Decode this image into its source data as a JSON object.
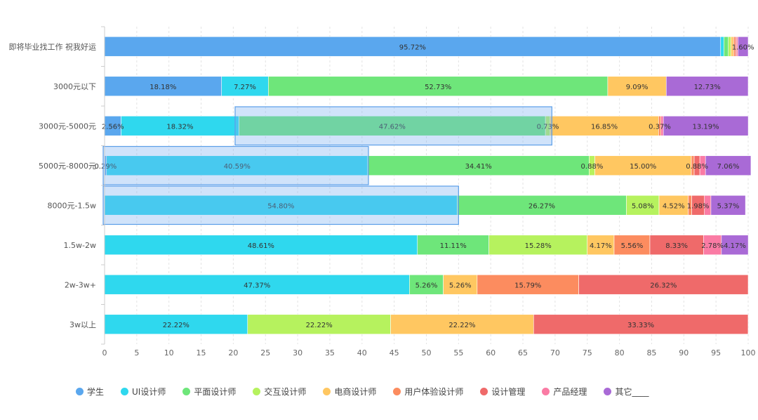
{
  "chart_data": {
    "type": "bar",
    "orientation": "horizontal",
    "stacked": true,
    "xlim": [
      0,
      100
    ],
    "xticks": [
      0,
      5,
      10,
      15,
      20,
      25,
      30,
      35,
      40,
      45,
      50,
      55,
      60,
      65,
      70,
      75,
      80,
      85,
      90,
      95,
      100
    ],
    "grid": "vertical dashed",
    "legend_position": "bottom",
    "categories": [
      "即将毕业找工作 祝我好运",
      "3000元以下",
      "3000元-5000元",
      "5000元-8000元",
      "8000元-1.5w",
      "1.5w-2w",
      "2w-3w+",
      "3w以上"
    ],
    "series": [
      {
        "name": "学生",
        "color": "#5aa7ee",
        "values": [
          95.72,
          18.18,
          2.56,
          0.29,
          0,
          0,
          0,
          0
        ]
      },
      {
        "name": "UI设计师",
        "color": "#2fd8ee",
        "values": [
          0.5,
          7.27,
          18.32,
          40.59,
          54.8,
          48.61,
          47.37,
          22.22
        ]
      },
      {
        "name": "平面设计师",
        "color": "#6ee67a",
        "values": [
          0.7,
          52.73,
          47.62,
          34.41,
          26.27,
          11.11,
          5.26,
          0
        ]
      },
      {
        "name": "交互设计师",
        "color": "#b6f25e",
        "values": [
          0.4,
          0,
          0.73,
          0.88,
          5.08,
          15.28,
          0,
          22.22
        ]
      },
      {
        "name": "电商设计师",
        "color": "#ffc761",
        "values": [
          0.4,
          9.09,
          16.85,
          15.0,
          4.52,
          4.17,
          5.26,
          22.22
        ]
      },
      {
        "name": "用户体验设计师",
        "color": "#fc8c5f",
        "values": [
          0.3,
          0,
          0.37,
          0.44,
          0.56,
          5.56,
          15.79,
          0
        ]
      },
      {
        "name": "设计管理",
        "color": "#ef6a6a",
        "values": [
          0.2,
          0,
          0,
          0.88,
          1.98,
          8.33,
          26.32,
          33.33
        ]
      },
      {
        "name": "产品经理",
        "color": "#fa7ba4",
        "values": [
          0.18,
          0,
          0.37,
          0.88,
          1.0,
          2.78,
          0,
          0
        ]
      },
      {
        "name": "其它____",
        "color": "#a96ad6",
        "values": [
          1.6,
          12.73,
          13.19,
          7.06,
          5.37,
          4.17,
          0,
          0
        ]
      }
    ],
    "data_labels": [
      [
        "95.72%",
        "",
        "",
        "",
        "",
        "",
        "",
        "",
        "1.60%"
      ],
      [
        "18.18%",
        "7.27%",
        "52.73%",
        "",
        "9.09%",
        "",
        "",
        "",
        "12.73%"
      ],
      [
        "2.56%",
        "18.32%",
        "47.62%",
        "0.73%",
        "16.85%",
        "0.37%",
        "",
        "",
        "13.19%"
      ],
      [
        "0.29%",
        "40.59%",
        "34.41%",
        "0.88%",
        "15.00%",
        "",
        "0.88%",
        "",
        "7.06%"
      ],
      [
        "",
        "54.80%",
        "26.27%",
        "5.08%",
        "4.52%",
        "",
        "1.98%",
        "",
        "5.37%"
      ],
      [
        "",
        "48.61%",
        "11.11%",
        "15.28%",
        "4.17%",
        "5.56%",
        "8.33%",
        "2.78%",
        "4.17%"
      ],
      [
        "",
        "47.37%",
        "5.26%",
        "",
        "5.26%",
        "15.79%",
        "26.32%",
        "",
        ""
      ],
      [
        "",
        "22.22%",
        "",
        "22.22%",
        "22.22%",
        "",
        "33.33%",
        "",
        ""
      ]
    ],
    "highlight_boxes": [
      {
        "category": "3000元-5000元",
        "x_range": [
          20.5,
          69.5
        ]
      },
      {
        "category": "5000元-8000元",
        "x_range": [
          0,
          41
        ]
      },
      {
        "category": "8000元-1.5w",
        "x_range": [
          0,
          55
        ]
      }
    ]
  }
}
